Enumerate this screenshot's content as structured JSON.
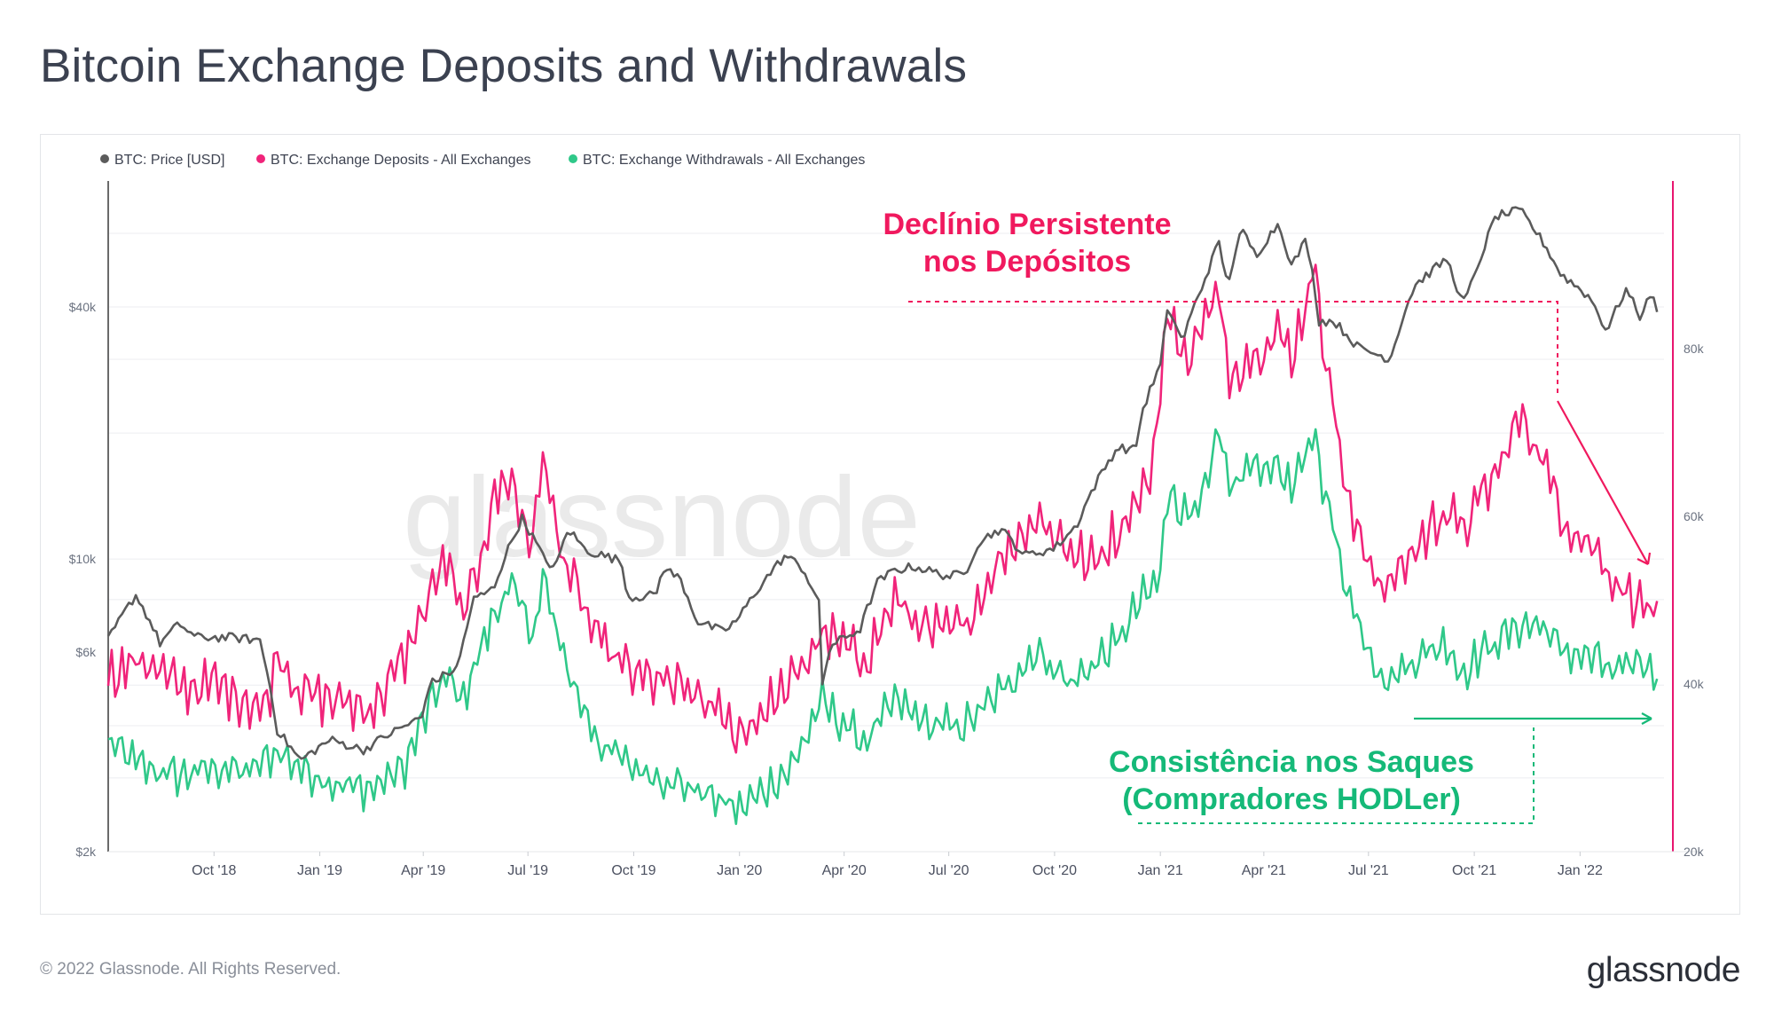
{
  "title": "Bitcoin Exchange Deposits and Withdrawals",
  "footer": "© 2022 Glassnode. All Rights Reserved.",
  "brand": "glassnode",
  "watermark": "glassnode",
  "colors": {
    "price": "#5b5b5b",
    "deposits": "#f0247a",
    "withdrawals": "#2fc889",
    "axis_right": "#e8166f"
  },
  "annotations": {
    "deposits_line1": "Declínio Persistente",
    "deposits_line2": "nos Depósitos",
    "withdrawals_line1": "Consistência nos Saques",
    "withdrawals_line2": "(Compradores HODLer)"
  },
  "chart_data": {
    "type": "line",
    "title": "Bitcoin Exchange Deposits and Withdrawals",
    "legend_position": "top-left",
    "x_axis": {
      "start": "2018-07-01",
      "end": "2022-03-15",
      "ticks": [
        {
          "date": "2018-10-01",
          "label": "Oct '18"
        },
        {
          "date": "2019-01-01",
          "label": "Jan '19"
        },
        {
          "date": "2019-04-01",
          "label": "Apr '19"
        },
        {
          "date": "2019-07-01",
          "label": "Jul '19"
        },
        {
          "date": "2019-10-01",
          "label": "Oct '19"
        },
        {
          "date": "2020-01-01",
          "label": "Jan '20"
        },
        {
          "date": "2020-04-01",
          "label": "Apr '20"
        },
        {
          "date": "2020-07-01",
          "label": "Jul '20"
        },
        {
          "date": "2020-10-01",
          "label": "Oct '20"
        },
        {
          "date": "2021-01-01",
          "label": "Jan '21"
        },
        {
          "date": "2021-04-01",
          "label": "Apr '21"
        },
        {
          "date": "2021-07-01",
          "label": "Jul '21"
        },
        {
          "date": "2021-10-01",
          "label": "Oct '21"
        },
        {
          "date": "2022-01-01",
          "label": "Jan '22"
        }
      ]
    },
    "y_left": {
      "scale": "log",
      "range": [
        2000,
        80000
      ],
      "ticks": [
        {
          "value": 2000,
          "label": "$2k"
        },
        {
          "value": 6000,
          "label": "$6k"
        },
        {
          "value": 10000,
          "label": "$10k"
        },
        {
          "value": 40000,
          "label": "$40k"
        }
      ]
    },
    "y_right": {
      "scale": "linear",
      "range": [
        20000,
        100000
      ],
      "ticks": [
        {
          "value": 20000,
          "label": "20k"
        },
        {
          "value": 40000,
          "label": "40k"
        },
        {
          "value": 60000,
          "label": "60k"
        },
        {
          "value": 80000,
          "label": "80k"
        }
      ]
    },
    "series": [
      {
        "name": "BTC: Price [USD]",
        "axis": "left",
        "points": [
          [
            "2018-07-01",
            6400
          ],
          [
            "2018-07-25",
            8200
          ],
          [
            "2018-08-15",
            6300
          ],
          [
            "2018-09-01",
            7000
          ],
          [
            "2018-09-15",
            6500
          ],
          [
            "2018-10-15",
            6500
          ],
          [
            "2018-11-10",
            6400
          ],
          [
            "2018-11-25",
            3900
          ],
          [
            "2018-12-15",
            3300
          ],
          [
            "2019-01-10",
            3700
          ],
          [
            "2019-02-08",
            3500
          ],
          [
            "2019-03-01",
            3800
          ],
          [
            "2019-04-01",
            4200
          ],
          [
            "2019-04-05",
            5000
          ],
          [
            "2019-05-01",
            5500
          ],
          [
            "2019-05-15",
            8000
          ],
          [
            "2019-06-01",
            8500
          ],
          [
            "2019-06-26",
            12500
          ],
          [
            "2019-07-15",
            10000
          ],
          [
            "2019-07-25",
            9500
          ],
          [
            "2019-08-05",
            11800
          ],
          [
            "2019-08-20",
            10500
          ],
          [
            "2019-09-20",
            9900
          ],
          [
            "2019-09-26",
            8100
          ],
          [
            "2019-10-20",
            8200
          ],
          [
            "2019-10-27",
            9500
          ],
          [
            "2019-11-10",
            9000
          ],
          [
            "2019-11-25",
            7100
          ],
          [
            "2019-12-18",
            6700
          ],
          [
            "2019-12-31",
            7200
          ],
          [
            "2020-01-20",
            8700
          ],
          [
            "2020-02-10",
            10200
          ],
          [
            "2020-02-25",
            9500
          ],
          [
            "2020-03-10",
            7800
          ],
          [
            "2020-03-13",
            5000
          ],
          [
            "2020-03-20",
            6200
          ],
          [
            "2020-04-15",
            6800
          ],
          [
            "2020-04-30",
            8800
          ],
          [
            "2020-05-15",
            9400
          ],
          [
            "2020-06-01",
            9600
          ],
          [
            "2020-06-30",
            9100
          ],
          [
            "2020-07-15",
            9200
          ],
          [
            "2020-07-27",
            11000
          ],
          [
            "2020-08-15",
            11800
          ],
          [
            "2020-09-05",
            10200
          ],
          [
            "2020-10-01",
            10600
          ],
          [
            "2020-10-20",
            12000
          ],
          [
            "2020-11-05",
            15000
          ],
          [
            "2020-11-25",
            18500
          ],
          [
            "2020-12-10",
            18200
          ],
          [
            "2020-12-17",
            22800
          ],
          [
            "2021-01-01",
            29000
          ],
          [
            "2021-01-08",
            40000
          ],
          [
            "2021-01-20",
            33000
          ],
          [
            "2021-02-08",
            46000
          ],
          [
            "2021-02-21",
            57000
          ],
          [
            "2021-02-28",
            45000
          ],
          [
            "2021-03-13",
            61000
          ],
          [
            "2021-03-25",
            53000
          ],
          [
            "2021-04-14",
            63500
          ],
          [
            "2021-04-25",
            50000
          ],
          [
            "2021-05-08",
            58000
          ],
          [
            "2021-05-19",
            37000
          ],
          [
            "2021-06-01",
            37000
          ],
          [
            "2021-06-22",
            32000
          ],
          [
            "2021-07-20",
            30000
          ],
          [
            "2021-08-10",
            45000
          ],
          [
            "2021-09-07",
            52000
          ],
          [
            "2021-09-21",
            40500
          ],
          [
            "2021-10-01",
            47000
          ],
          [
            "2021-10-20",
            66000
          ],
          [
            "2021-11-10",
            68000
          ],
          [
            "2021-11-30",
            57000
          ],
          [
            "2021-12-15",
            48000
          ],
          [
            "2022-01-10",
            42000
          ],
          [
            "2022-01-24",
            35000
          ],
          [
            "2022-02-10",
            44000
          ],
          [
            "2022-02-24",
            37000
          ],
          [
            "2022-03-01",
            44000
          ],
          [
            "2022-03-10",
            39000
          ]
        ]
      },
      {
        "name": "BTC: Exchange Deposits - All Exchanges",
        "axis": "right",
        "points": [
          [
            "2018-07-01",
            41000
          ],
          [
            "2018-08-01",
            43000
          ],
          [
            "2018-09-01",
            39500
          ],
          [
            "2018-10-01",
            40000
          ],
          [
            "2018-11-15",
            37000
          ],
          [
            "2018-11-25",
            44000
          ],
          [
            "2018-12-15",
            39000
          ],
          [
            "2019-01-15",
            38000
          ],
          [
            "2019-02-15",
            37000
          ],
          [
            "2019-03-15",
            43000
          ],
          [
            "2019-04-05",
            50000
          ],
          [
            "2019-04-20",
            55000
          ],
          [
            "2019-05-05",
            48000
          ],
          [
            "2019-05-15",
            52000
          ],
          [
            "2019-06-01",
            62000
          ],
          [
            "2019-06-15",
            65000
          ],
          [
            "2019-06-25",
            60000
          ],
          [
            "2019-07-05",
            57000
          ],
          [
            "2019-07-15",
            68000
          ],
          [
            "2019-07-25",
            58000
          ],
          [
            "2019-08-15",
            50000
          ],
          [
            "2019-09-01",
            45000
          ],
          [
            "2019-10-01",
            41000
          ],
          [
            "2019-11-01",
            40000
          ],
          [
            "2019-12-01",
            38000
          ],
          [
            "2020-01-01",
            34000
          ],
          [
            "2020-02-15",
            40000
          ],
          [
            "2020-03-13",
            46000
          ],
          [
            "2020-03-25",
            45000
          ],
          [
            "2020-04-20",
            43000
          ],
          [
            "2020-05-15",
            50000
          ],
          [
            "2020-06-15",
            46000
          ],
          [
            "2020-07-15",
            47000
          ],
          [
            "2020-08-15",
            55000
          ],
          [
            "2020-09-15",
            60000
          ],
          [
            "2020-10-15",
            56000
          ],
          [
            "2020-11-01",
            54000
          ],
          [
            "2020-11-25",
            58000
          ],
          [
            "2020-12-10",
            62000
          ],
          [
            "2020-12-25",
            65000
          ],
          [
            "2021-01-08",
            86000
          ],
          [
            "2021-01-20",
            78000
          ],
          [
            "2021-02-10",
            84000
          ],
          [
            "2021-02-21",
            86000
          ],
          [
            "2021-03-01",
            77000
          ],
          [
            "2021-03-20",
            79000
          ],
          [
            "2021-04-14",
            82000
          ],
          [
            "2021-04-25",
            79000
          ],
          [
            "2021-05-01",
            82000
          ],
          [
            "2021-05-08",
            86000
          ],
          [
            "2021-05-15",
            90000
          ],
          [
            "2021-05-22",
            82000
          ],
          [
            "2021-06-15",
            60000
          ],
          [
            "2021-07-15",
            51000
          ],
          [
            "2021-08-10",
            56000
          ],
          [
            "2021-09-07",
            61000
          ],
          [
            "2021-09-20",
            58000
          ],
          [
            "2021-10-01",
            61000
          ],
          [
            "2021-10-20",
            65000
          ],
          [
            "2021-11-10",
            72000
          ],
          [
            "2021-11-30",
            67000
          ],
          [
            "2021-12-15",
            60000
          ],
          [
            "2022-01-15",
            56000
          ],
          [
            "2022-02-01",
            52000
          ],
          [
            "2022-02-20",
            50000
          ],
          [
            "2022-03-10",
            48000
          ]
        ]
      },
      {
        "name": "BTC: Exchange Withdrawals - All Exchanges",
        "axis": "right",
        "points": [
          [
            "2018-07-01",
            33000
          ],
          [
            "2018-08-01",
            30000
          ],
          [
            "2018-09-01",
            29000
          ],
          [
            "2018-10-01",
            30000
          ],
          [
            "2018-11-01",
            29500
          ],
          [
            "2018-11-25",
            32000
          ],
          [
            "2018-12-15",
            30000
          ],
          [
            "2019-01-15",
            28000
          ],
          [
            "2019-02-15",
            27500
          ],
          [
            "2019-03-15",
            30000
          ],
          [
            "2019-04-05",
            37000
          ],
          [
            "2019-04-20",
            41000
          ],
          [
            "2019-05-05",
            38000
          ],
          [
            "2019-05-15",
            42000
          ],
          [
            "2019-06-01",
            48000
          ],
          [
            "2019-06-15",
            52000
          ],
          [
            "2019-06-25",
            49000
          ],
          [
            "2019-07-05",
            46000
          ],
          [
            "2019-07-15",
            53000
          ],
          [
            "2019-07-25",
            46000
          ],
          [
            "2019-08-15",
            38000
          ],
          [
            "2019-09-01",
            33000
          ],
          [
            "2019-10-01",
            30000
          ],
          [
            "2019-11-01",
            28500
          ],
          [
            "2019-12-01",
            27000
          ],
          [
            "2020-01-01",
            25000
          ],
          [
            "2020-02-15",
            30000
          ],
          [
            "2020-03-13",
            38000
          ],
          [
            "2020-03-25",
            36000
          ],
          [
            "2020-04-20",
            33000
          ],
          [
            "2020-05-15",
            38000
          ],
          [
            "2020-06-15",
            35000
          ],
          [
            "2020-07-15",
            35000
          ],
          [
            "2020-08-15",
            39000
          ],
          [
            "2020-09-15",
            44000
          ],
          [
            "2020-10-15",
            40000
          ],
          [
            "2020-11-01",
            42000
          ],
          [
            "2020-11-25",
            45000
          ],
          [
            "2020-12-15",
            50000
          ],
          [
            "2020-12-30",
            52000
          ],
          [
            "2021-01-10",
            64000
          ],
          [
            "2021-01-20",
            60000
          ],
          [
            "2021-02-10",
            63000
          ],
          [
            "2021-02-21",
            70000
          ],
          [
            "2021-03-01",
            63000
          ],
          [
            "2021-03-20",
            66000
          ],
          [
            "2021-04-14",
            66000
          ],
          [
            "2021-04-25",
            63000
          ],
          [
            "2021-05-08",
            67000
          ],
          [
            "2021-05-15",
            71000
          ],
          [
            "2021-05-22",
            64000
          ],
          [
            "2021-06-15",
            50000
          ],
          [
            "2021-07-15",
            40000
          ],
          [
            "2021-08-10",
            43000
          ],
          [
            "2021-09-07",
            45000
          ],
          [
            "2021-09-20",
            41000
          ],
          [
            "2021-10-01",
            43000
          ],
          [
            "2021-10-20",
            45000
          ],
          [
            "2021-11-10",
            47000
          ],
          [
            "2021-11-30",
            47000
          ],
          [
            "2021-12-15",
            44000
          ],
          [
            "2022-01-15",
            43000
          ],
          [
            "2022-02-01",
            41000
          ],
          [
            "2022-02-20",
            43000
          ],
          [
            "2022-03-10",
            41000
          ]
        ]
      }
    ]
  }
}
